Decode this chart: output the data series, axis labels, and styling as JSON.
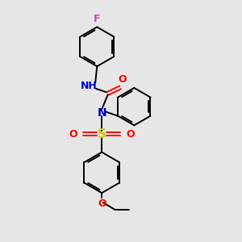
{
  "background_color": "#e6e6e6",
  "bond_color": "#000000",
  "N_color": "#0000cc",
  "O_color": "#ff0000",
  "F_color": "#cc44bb",
  "S_color": "#cccc00",
  "figsize": [
    3.0,
    3.0
  ],
  "dpi": 100,
  "xlim": [
    0,
    10
  ],
  "ylim": [
    0,
    10
  ]
}
